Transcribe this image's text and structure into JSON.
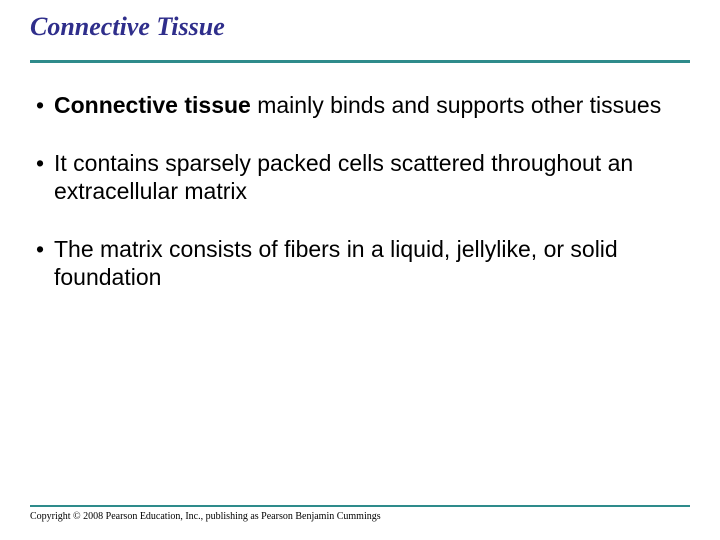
{
  "colors": {
    "title_text": "#2f2e8b",
    "rule": "#2e8b8b",
    "body_text": "#000000",
    "background": "#ffffff"
  },
  "typography": {
    "title_font": "Times New Roman",
    "title_style": "italic bold",
    "title_size_pt": 20,
    "body_font": "Arial",
    "body_size_pt": 17,
    "copyright_font": "Times New Roman",
    "copyright_size_pt": 7
  },
  "title": "Connective Tissue",
  "bullets": [
    {
      "runs": [
        {
          "text": "Connective tissue",
          "bold": true
        },
        {
          "text": " mainly binds and supports other tissues",
          "bold": false
        }
      ]
    },
    {
      "runs": [
        {
          "text": "It contains sparsely packed cells scattered throughout an extracellular matrix",
          "bold": false
        }
      ]
    },
    {
      "runs": [
        {
          "text": "The matrix consists of fibers in a liquid, jellylike, or solid foundation",
          "bold": false
        }
      ]
    }
  ],
  "copyright": "Copyright © 2008 Pearson Education, Inc., publishing as Pearson Benjamin Cummings"
}
